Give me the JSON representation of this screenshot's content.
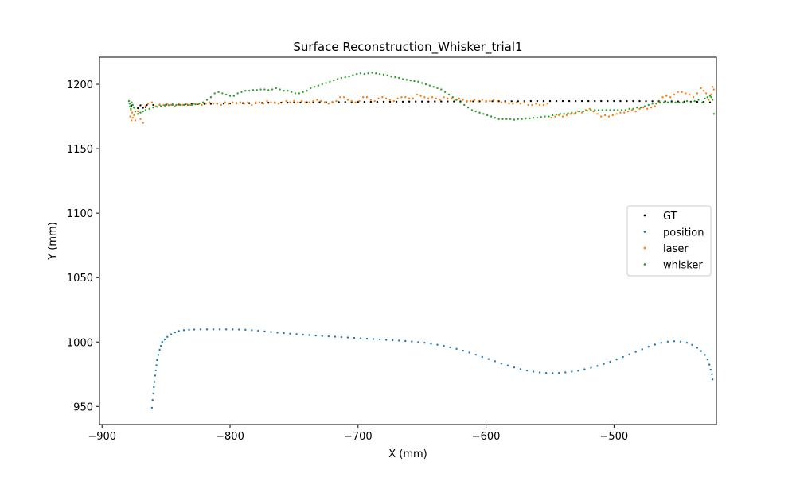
{
  "chart_data": {
    "type": "scatter",
    "title": "Surface Reconstruction_Whisker_trial1",
    "xlabel": "X (mm)",
    "ylabel": "Y (mm)",
    "xlim": [
      -902,
      -420
    ],
    "ylim": [
      936,
      1221
    ],
    "xticks": [
      -900,
      -800,
      -700,
      -600,
      -500
    ],
    "xtick_labels": [
      "−900",
      "−800",
      "−700",
      "−600",
      "−500"
    ],
    "yticks": [
      950,
      1000,
      1050,
      1100,
      1150,
      1200
    ],
    "ytick_labels": [
      "950",
      "1000",
      "1050",
      "1100",
      "1150",
      "1200"
    ],
    "grid": false,
    "legend_position": "center-right",
    "series": [
      {
        "name": "GT",
        "color": "#000000",
        "x": [
          -877,
          -870,
          -865,
          -860,
          -855,
          -850,
          -845,
          -840,
          -835,
          -830,
          -825,
          -820,
          -815,
          -810,
          -805,
          -800,
          -795,
          -790,
          -785,
          -780,
          -775,
          -770,
          -765,
          -760,
          -755,
          -750,
          -745,
          -740,
          -735,
          -730,
          -725,
          -720,
          -715,
          -710,
          -705,
          -700,
          -695,
          -690,
          -685,
          -680,
          -675,
          -670,
          -665,
          -660,
          -655,
          -650,
          -645,
          -640,
          -635,
          -630,
          -625,
          -620,
          -615,
          -610,
          -605,
          -600,
          -595,
          -590,
          -585,
          -580,
          -575,
          -570,
          -565,
          -560,
          -555,
          -550,
          -545,
          -540,
          -535,
          -530,
          -525,
          -520,
          -515,
          -510,
          -505,
          -500,
          -495,
          -490,
          -485,
          -480,
          -475,
          -470,
          -465,
          -460,
          -455,
          -450,
          -445,
          -440,
          -435,
          -430,
          -425,
          -875,
          -872,
          -868,
          -866
        ],
        "y": [
          1183.5,
          1183.7,
          1183.9,
          1184.0,
          1184.1,
          1184.2,
          1184.3,
          1184.4,
          1184.5,
          1184.6,
          1184.7,
          1184.8,
          1184.9,
          1185.0,
          1185.1,
          1185.2,
          1185.3,
          1185.4,
          1185.4,
          1185.5,
          1185.6,
          1185.7,
          1185.7,
          1185.8,
          1185.8,
          1185.9,
          1185.9,
          1186.0,
          1186.0,
          1186.1,
          1186.1,
          1186.2,
          1186.2,
          1186.3,
          1186.3,
          1186.3,
          1186.4,
          1186.4,
          1186.4,
          1186.5,
          1186.5,
          1186.5,
          1186.5,
          1186.6,
          1186.6,
          1186.6,
          1186.6,
          1186.7,
          1186.7,
          1186.7,
          1186.7,
          1186.8,
          1186.8,
          1186.8,
          1186.8,
          1186.8,
          1186.9,
          1186.9,
          1186.9,
          1186.9,
          1186.9,
          1186.9,
          1187.0,
          1187.0,
          1187.0,
          1187.0,
          1187.0,
          1187.0,
          1187.0,
          1187.0,
          1187.0,
          1187.0,
          1187.0,
          1187.0,
          1187.0,
          1187.0,
          1187.0,
          1187.0,
          1187.0,
          1187.0,
          1186.9,
          1186.9,
          1186.9,
          1186.8,
          1186.8,
          1186.7,
          1186.6,
          1186.5,
          1186.4,
          1186.3,
          1186.0,
          1182.0,
          1181.5,
          1181.8,
          1182.3
        ]
      },
      {
        "name": "position",
        "color": "#1f77b4",
        "x": [
          -861,
          -860.5,
          -860,
          -859.5,
          -859,
          -858.5,
          -858,
          -857.5,
          -857,
          -856,
          -855,
          -854,
          -853,
          -851,
          -849,
          -846,
          -843,
          -840,
          -836,
          -832,
          -828,
          -823,
          -818,
          -813,
          -808,
          -803,
          -798,
          -793,
          -788,
          -783,
          -778,
          -773,
          -768,
          -763,
          -758,
          -753,
          -748,
          -743,
          -738,
          -733,
          -728,
          -723,
          -718,
          -713,
          -708,
          -703,
          -698,
          -693,
          -688,
          -683,
          -678,
          -673,
          -668,
          -663,
          -658,
          -653,
          -648,
          -643,
          -638,
          -633,
          -628,
          -623,
          -618,
          -613,
          -608,
          -603,
          -598,
          -593,
          -588,
          -583,
          -578,
          -573,
          -568,
          -563,
          -558,
          -553,
          -548,
          -543,
          -538,
          -533,
          -528,
          -523,
          -518,
          -513,
          -508,
          -503,
          -498,
          -493,
          -488,
          -483,
          -478,
          -473,
          -468,
          -463,
          -458,
          -453,
          -448,
          -443,
          -439,
          -435,
          -432,
          -429,
          -427,
          -425.5,
          -424.5,
          -423.5,
          -423
        ],
        "y": [
          949,
          955,
          960,
          965,
          969,
          974,
          978,
          982,
          986,
          990,
          994,
          997,
          1000,
          1002,
          1004,
          1006,
          1007.5,
          1008.5,
          1009.2,
          1009.5,
          1009.7,
          1009.8,
          1009.8,
          1009.8,
          1009.8,
          1009.8,
          1009.8,
          1009.7,
          1009.5,
          1009.2,
          1008.8,
          1008.3,
          1007.8,
          1007.3,
          1006.9,
          1006.5,
          1006.1,
          1005.7,
          1005.4,
          1005.0,
          1004.7,
          1004.4,
          1004.1,
          1003.8,
          1003.5,
          1003.2,
          1002.9,
          1002.6,
          1002.3,
          1002.0,
          1001.7,
          1001.4,
          1001.1,
          1000.8,
          1000.4,
          999.9,
          999.4,
          998.7,
          997.9,
          997.0,
          995.9,
          994.7,
          993.3,
          991.8,
          990.2,
          988.5,
          986.8,
          985.1,
          983.4,
          981.8,
          980.3,
          979.0,
          977.9,
          977.0,
          976.4,
          976.0,
          975.9,
          976.0,
          976.4,
          977.0,
          977.8,
          978.8,
          980.0,
          981.4,
          983.0,
          984.7,
          986.5,
          988.4,
          990.4,
          992.4,
          994.4,
          996.3,
          998.0,
          999.4,
          1000.3,
          1000.6,
          1000.3,
          999.4,
          997.8,
          995.6,
          993.0,
          990.0,
          986.5,
          982.5,
          978.5,
          975,
          971
        ]
      },
      {
        "name": "laser",
        "color": "#ff7f0e",
        "x": [
          -878,
          -877.5,
          -877,
          -876.5,
          -876,
          -875,
          -874,
          -872,
          -870,
          -868,
          -866,
          -864,
          -861,
          -858,
          -855,
          -852,
          -849,
          -846,
          -843,
          -840,
          -837,
          -834,
          -831,
          -828,
          -825,
          -822,
          -819,
          -816,
          -813,
          -810,
          -807,
          -804,
          -801,
          -798,
          -795,
          -792,
          -789,
          -786,
          -783,
          -780,
          -777,
          -774,
          -771,
          -768,
          -765,
          -762,
          -759,
          -756,
          -753,
          -750,
          -747,
          -744,
          -741,
          -738,
          -735,
          -732,
          -729,
          -726,
          -723,
          -720,
          -717,
          -714,
          -711,
          -708,
          -705,
          -702,
          -699,
          -696,
          -693,
          -690,
          -687,
          -684,
          -681,
          -678,
          -675,
          -672,
          -669,
          -666,
          -663,
          -660,
          -657,
          -654,
          -651,
          -648,
          -645,
          -642,
          -639,
          -636,
          -633,
          -630,
          -627,
          -624,
          -621,
          -618,
          -615,
          -612,
          -609,
          -606,
          -603,
          -600,
          -597,
          -594,
          -591,
          -588,
          -585,
          -582,
          -579,
          -576,
          -573,
          -570,
          -567,
          -564,
          -561,
          -558,
          -555,
          -552,
          -549,
          -546,
          -543,
          -540,
          -537,
          -534,
          -531,
          -528,
          -525,
          -522,
          -519,
          -516,
          -513,
          -510,
          -507,
          -504,
          -501,
          -498,
          -495,
          -492,
          -489,
          -486,
          -483,
          -480,
          -477,
          -474,
          -471,
          -468,
          -465,
          -462,
          -459,
          -456,
          -453,
          -450,
          -447,
          -444,
          -441,
          -438,
          -435,
          -432,
          -430,
          -428,
          -426,
          -424,
          -423,
          -422
        ],
        "y": [
          1175,
          1180,
          1172,
          1178,
          1174,
          1176,
          1172,
          1179,
          1173,
          1170,
          1183,
          1185,
          1186,
          1183,
          1184,
          1184,
          1185,
          1184,
          1183,
          1185,
          1184,
          1185,
          1184,
          1185,
          1185,
          1184,
          1185,
          1186,
          1185,
          1185,
          1184,
          1186,
          1185,
          1186,
          1185,
          1186,
          1185,
          1186,
          1184,
          1186,
          1186,
          1185,
          1187,
          1186,
          1186,
          1185,
          1186,
          1187,
          1186,
          1187,
          1186,
          1187,
          1186,
          1186,
          1187,
          1188,
          1187,
          1186,
          1185,
          1186,
          1187,
          1190,
          1190,
          1188,
          1187,
          1186,
          1187,
          1190,
          1190,
          1188,
          1187,
          1189,
          1190,
          1189,
          1188,
          1187,
          1189,
          1190,
          1190,
          1189,
          1189,
          1192,
          1191,
          1190,
          1189,
          1190,
          1189,
          1188,
          1190,
          1189,
          1189,
          1188,
          1189,
          1188,
          1187,
          1187,
          1188,
          1187,
          1188,
          1187,
          1187,
          1188,
          1187,
          1186,
          1186,
          1185,
          1185,
          1186,
          1185,
          1186,
          1184,
          1184,
          1185,
          1184,
          1184,
          1185,
          1174,
          1175,
          1176,
          1175,
          1176,
          1177,
          1177,
          1179,
          1178,
          1180,
          1181,
          1179,
          1177,
          1175,
          1176,
          1175,
          1176,
          1177,
          1178,
          1178,
          1179,
          1180,
          1179,
          1181,
          1182,
          1181,
          1182,
          1183,
          1186,
          1190,
          1191,
          1190,
          1192,
          1194,
          1194,
          1193,
          1192,
          1190,
          1193,
          1197,
          1195,
          1193,
          1188,
          1192,
          1198,
          1196
        ],
        "y_note": ""
      },
      {
        "name": "whisker",
        "color": "#2ca02c",
        "x": [
          -879,
          -878.5,
          -878,
          -877.5,
          -877,
          -876,
          -875,
          -874,
          -872,
          -870,
          -868,
          -866,
          -863,
          -860,
          -857,
          -854,
          -851,
          -848,
          -845,
          -842,
          -839,
          -836,
          -833,
          -830,
          -827,
          -824,
          -821,
          -818,
          -815,
          -812,
          -809,
          -806,
          -803,
          -800,
          -797,
          -794,
          -791,
          -788,
          -785,
          -782,
          -779,
          -776,
          -773,
          -770,
          -767,
          -764,
          -761,
          -758,
          -755,
          -752,
          -749,
          -746,
          -743,
          -740,
          -737,
          -734,
          -731,
          -728,
          -725,
          -722,
          -719,
          -716,
          -713,
          -710,
          -707,
          -704,
          -701,
          -698,
          -695,
          -692,
          -689,
          -686,
          -683,
          -680,
          -677,
          -674,
          -671,
          -668,
          -665,
          -662,
          -659,
          -656,
          -653,
          -650,
          -647,
          -644,
          -641,
          -638,
          -635,
          -632,
          -629,
          -626,
          -623,
          -620,
          -617,
          -614,
          -611,
          -608,
          -605,
          -602,
          -599,
          -596,
          -593,
          -590,
          -587,
          -584,
          -581,
          -578,
          -575,
          -572,
          -569,
          -566,
          -563,
          -560,
          -557,
          -554,
          -551,
          -548,
          -545,
          -542,
          -539,
          -536,
          -533,
          -530,
          -527,
          -524,
          -521,
          -518,
          -515,
          -512,
          -509,
          -506,
          -503,
          -500,
          -497,
          -494,
          -491,
          -488,
          -485,
          -482,
          -479,
          -476,
          -473,
          -470,
          -467,
          -464,
          -461,
          -458,
          -455,
          -452,
          -449,
          -446,
          -443,
          -440,
          -437,
          -434,
          -431,
          -429,
          -427,
          -425,
          -424,
          -423,
          -422
        ],
        "y": [
          1187,
          1185,
          1183,
          1181,
          1186,
          1184,
          1182,
          1179,
          1177,
          1178,
          1179,
          1180,
          1181,
          1182,
          1182.5,
          1183,
          1183.5,
          1183.8,
          1184,
          1184,
          1184,
          1184,
          1184,
          1184,
          1184.5,
          1185,
          1186,
          1188,
          1190,
          1193,
          1194,
          1193,
          1192,
          1191,
          1191,
          1193,
          1194,
          1195,
          1195,
          1195.5,
          1195.5,
          1196,
          1196,
          1195.5,
          1196,
          1197,
          1196,
          1195,
          1195,
          1194,
          1193,
          1193,
          1194,
          1195,
          1197,
          1198,
          1199,
          1200,
          1201,
          1202,
          1203,
          1204,
          1205,
          1205.5,
          1206,
          1207,
          1208,
          1208.5,
          1208,
          1208.5,
          1209,
          1208.5,
          1208,
          1207.5,
          1207,
          1206,
          1205.5,
          1205,
          1204,
          1203.5,
          1203,
          1202.5,
          1202,
          1201,
          1200,
          1199,
          1198,
          1197,
          1196,
          1194,
          1192,
          1190,
          1188,
          1186,
          1184,
          1182,
          1180,
          1179,
          1178,
          1177,
          1176,
          1175,
          1174,
          1173,
          1173,
          1173,
          1173,
          1172.5,
          1173,
          1173,
          1173.5,
          1173.5,
          1174,
          1174,
          1174.5,
          1175,
          1175,
          1176,
          1176.5,
          1177,
          1177,
          1177.5,
          1178,
          1178,
          1179,
          1179,
          1179.5,
          1180,
          1180,
          1180,
          1180,
          1180,
          1180,
          1180,
          1180,
          1180,
          1180,
          1181,
          1181,
          1182,
          1182,
          1183,
          1184,
          1185,
          1185,
          1186,
          1186,
          1186,
          1186,
          1186,
          1186,
          1186,
          1187,
          1186,
          1187,
          1188,
          1186,
          1189,
          1190,
          1191,
          1190,
          1188,
          1177
        ]
      }
    ]
  }
}
